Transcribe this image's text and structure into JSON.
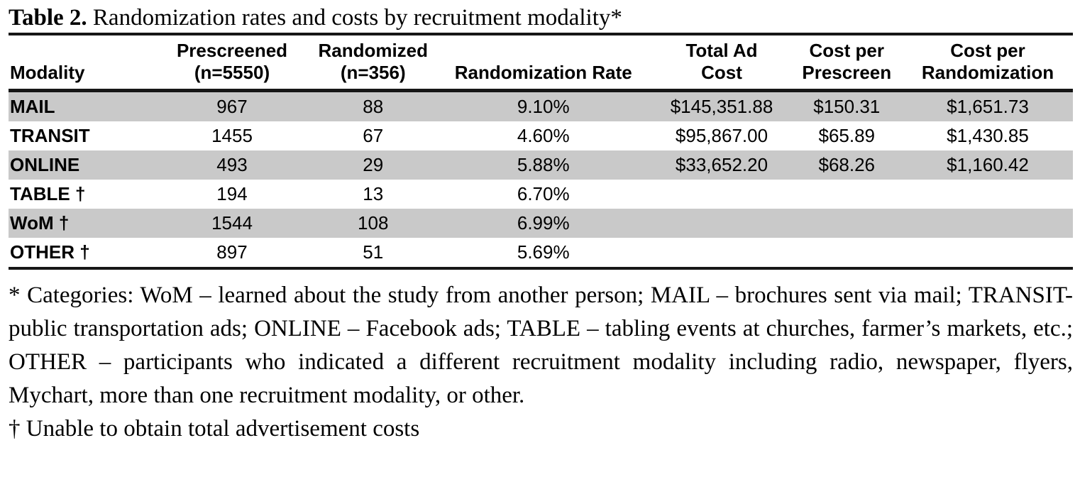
{
  "caption": {
    "label": "Table 2.",
    "text": " Randomization rates and costs by recruitment modality*"
  },
  "colors": {
    "row_shade": "#c9c9c9",
    "rule": "#161616",
    "text": "#000000",
    "background": "#ffffff"
  },
  "table": {
    "header": [
      {
        "line1": "",
        "line2": "Modality"
      },
      {
        "line1": "Prescreened",
        "line2": "(n=5550)"
      },
      {
        "line1": "Randomized",
        "line2": "(n=356)"
      },
      {
        "line1": "",
        "line2": "Randomization Rate"
      },
      {
        "line1": "Total Ad",
        "line2": "Cost"
      },
      {
        "line1": "Cost per",
        "line2": "Prescreen"
      },
      {
        "line1": "Cost per",
        "line2": "Randomization"
      }
    ],
    "rows": [
      {
        "modality": "MAIL",
        "prescreened": "967",
        "randomized": "88",
        "rate": "9.10%",
        "total_ad_cost": "$145,351.88",
        "cost_per_prescreen": "$150.31",
        "cost_per_randomization": "$1,651.73"
      },
      {
        "modality": "TRANSIT",
        "prescreened": "1455",
        "randomized": "67",
        "rate": "4.60%",
        "total_ad_cost": "$95,867.00",
        "cost_per_prescreen": "$65.89",
        "cost_per_randomization": "$1,430.85"
      },
      {
        "modality": "ONLINE",
        "prescreened": "493",
        "randomized": "29",
        "rate": "5.88%",
        "total_ad_cost": "$33,652.20",
        "cost_per_prescreen": "$68.26",
        "cost_per_randomization": "$1,160.42"
      },
      {
        "modality": "TABLE †",
        "prescreened": "194",
        "randomized": "13",
        "rate": "6.70%",
        "total_ad_cost": "",
        "cost_per_prescreen": "",
        "cost_per_randomization": ""
      },
      {
        "modality": "WoM †",
        "prescreened": "1544",
        "randomized": "108",
        "rate": "6.99%",
        "total_ad_cost": "",
        "cost_per_prescreen": "",
        "cost_per_randomization": ""
      },
      {
        "modality": "OTHER †",
        "prescreened": "897",
        "randomized": "51",
        "rate": "5.69%",
        "total_ad_cost": "",
        "cost_per_prescreen": "",
        "cost_per_randomization": ""
      }
    ]
  },
  "footnotes": {
    "categories": "* Categories: WoM – learned about the study from another person; MAIL – brochures sent via mail; TRANSIT- public transportation ads; ONLINE – Facebook ads; TABLE – tabling events at churches, farmer’s markets, etc.; OTHER – participants who indicated a different recruitment modality including radio, newspaper, flyers, Mychart, more than one recruitment modality, or other.",
    "dagger": "† Unable to obtain total advertisement costs"
  }
}
